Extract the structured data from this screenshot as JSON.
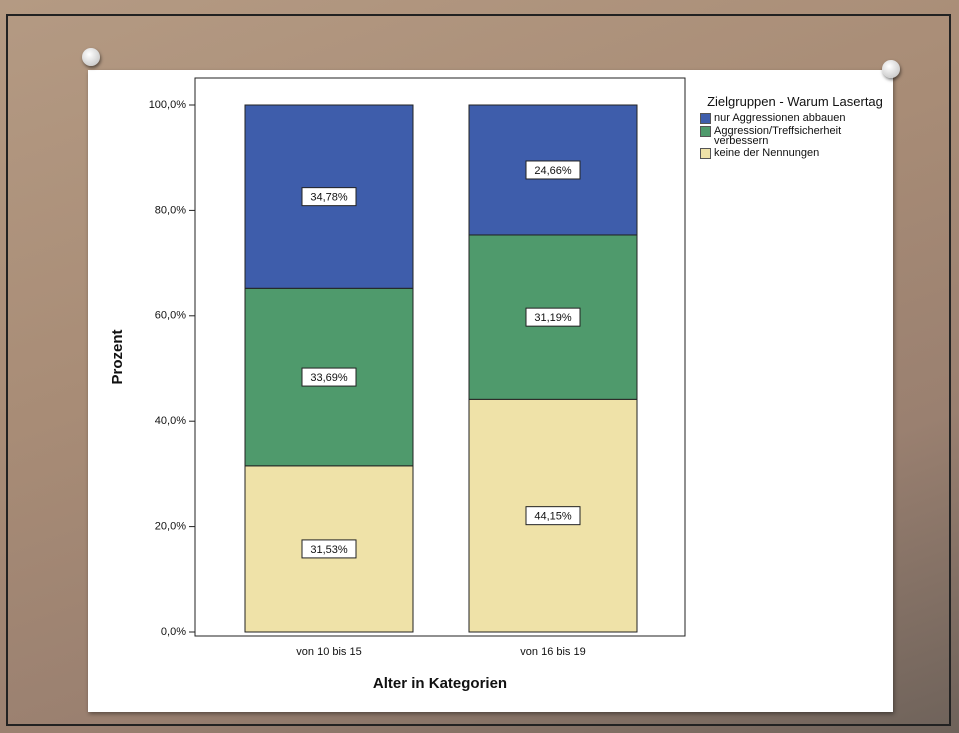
{
  "chart_data": {
    "type": "stacked_bar",
    "y_label": "Prozent",
    "x_label": "Alter in Kategorien",
    "legend_title": "Zielgruppen - Warum Lasertag",
    "legend_position": "right",
    "categories": [
      "von 10 bis 15",
      "von 16 bis 19"
    ],
    "series": [
      {
        "name": "nur Aggressionen abbauen",
        "color": "#3e5dab",
        "values": [
          34.78,
          24.66
        ],
        "value_labels": [
          "34,78%",
          "24,66%"
        ]
      },
      {
        "name": "Aggression/Treffsicherheit verbessern",
        "color": "#4f9a6c",
        "values": [
          33.69,
          31.19
        ],
        "value_labels": [
          "33,69%",
          "31,19%"
        ]
      },
      {
        "name": "keine der Nennungen",
        "color": "#efe2a8",
        "values": [
          31.53,
          44.15
        ],
        "value_labels": [
          "31,53%",
          "44,15%"
        ]
      }
    ],
    "ylim": [
      0,
      100
    ],
    "yticks": [
      {
        "value": 0,
        "label": "0,0%"
      },
      {
        "value": 20,
        "label": "20,0%"
      },
      {
        "value": 40,
        "label": "40,0%"
      },
      {
        "value": 60,
        "label": "60,0%"
      },
      {
        "value": 80,
        "label": "80,0%"
      },
      {
        "value": 100,
        "label": "100,0%"
      }
    ]
  }
}
